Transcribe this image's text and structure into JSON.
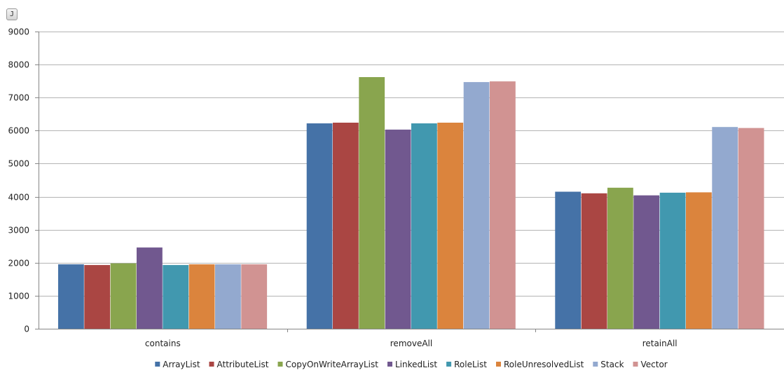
{
  "badge": {
    "label": "J"
  },
  "chart_data": {
    "type": "bar",
    "title": "",
    "xlabel": "",
    "ylabel": "",
    "categories": [
      "contains",
      "removeAll",
      "retainAll"
    ],
    "ylim": [
      0,
      9000
    ],
    "yticks": [
      0,
      1000,
      2000,
      3000,
      4000,
      5000,
      6000,
      7000,
      8000,
      9000
    ],
    "grid": true,
    "legend_position": "bottom",
    "series": [
      {
        "name": "ArrayList",
        "color": "#4572a7",
        "values": [
          1950,
          6220,
          4150
        ]
      },
      {
        "name": "AttributeList",
        "color": "#aa4643",
        "values": [
          1930,
          6240,
          4100
        ]
      },
      {
        "name": "CopyOnWriteArrayList",
        "color": "#89a54e",
        "values": [
          1980,
          7620,
          4270
        ]
      },
      {
        "name": "LinkedList",
        "color": "#71588f",
        "values": [
          2460,
          6030,
          4040
        ]
      },
      {
        "name": "RoleList",
        "color": "#4198af",
        "values": [
          1930,
          6220,
          4120
        ]
      },
      {
        "name": "RoleUnresolvedList",
        "color": "#db843d",
        "values": [
          1950,
          6240,
          4130
        ]
      },
      {
        "name": "Stack",
        "color": "#93a9cf",
        "values": [
          1950,
          7470,
          6110
        ]
      },
      {
        "name": "Vector",
        "color": "#d19392",
        "values": [
          1950,
          7490,
          6080
        ]
      }
    ]
  }
}
